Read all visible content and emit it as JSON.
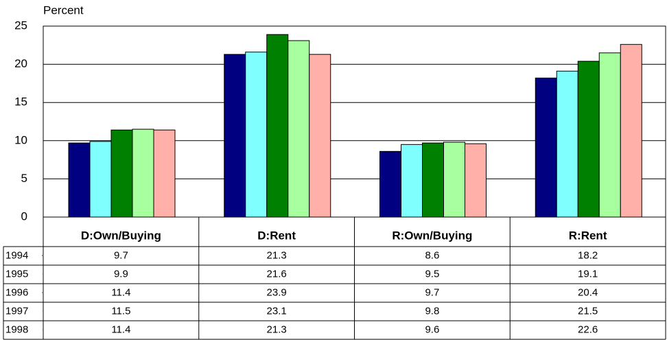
{
  "chart_data": {
    "type": "bar",
    "y_label": "Percent",
    "categories": [
      "D:Own/Buying",
      "D:Rent",
      "R:Own/Buying",
      "R:Rent"
    ],
    "series": [
      {
        "name": "1994",
        "color": "#000080",
        "values": [
          9.7,
          21.3,
          8.6,
          18.2
        ]
      },
      {
        "name": "1995",
        "color": "#80ffff",
        "values": [
          9.9,
          21.6,
          9.5,
          19.1
        ]
      },
      {
        "name": "1996",
        "color": "#008000",
        "values": [
          11.4,
          23.9,
          9.7,
          20.4
        ]
      },
      {
        "name": "1997",
        "color": "#a8ffa0",
        "values": [
          11.5,
          23.1,
          9.8,
          21.5
        ]
      },
      {
        "name": "1998",
        "color": "#ffb0a8",
        "values": [
          11.4,
          21.3,
          9.6,
          22.6
        ]
      }
    ],
    "ylim": [
      0,
      25
    ],
    "yticks": [
      0,
      5,
      10,
      15,
      20,
      25
    ],
    "grid": true
  }
}
